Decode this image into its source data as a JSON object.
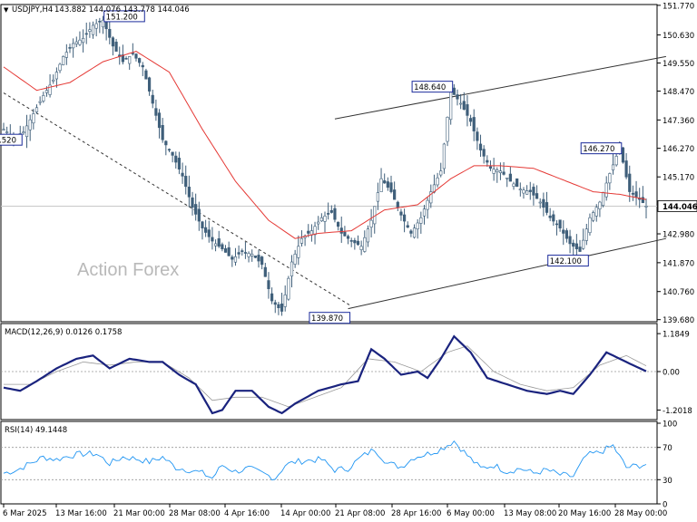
{
  "chart_data": {
    "type": "candlestick",
    "instrument": "USDJPY,H4",
    "ohlc_header": "143.882 144.076 143.778 144.046",
    "current_price": "144.046",
    "watermark": "Action Forex",
    "x_tick_labels": [
      "6 Mar 2025",
      "13 Mar 16:00",
      "21 Mar 00:00",
      "28 Mar 08:00",
      "4 Apr 16:00",
      "14 Apr 00:00",
      "21 Apr 08:00",
      "28 Apr 16:00",
      "6 May 00:00",
      "13 May 08:00",
      "20 May 16:00",
      "28 May 00:00"
    ],
    "price_panel": {
      "y_ticks": [
        "151.770",
        "150.630",
        "149.550",
        "148.470",
        "147.360",
        "146.270",
        "145.170",
        "144.046",
        "142.980",
        "141.870",
        "140.760",
        "139.680"
      ],
      "ylim": [
        139.6,
        151.8
      ],
      "annotations": [
        "151.200",
        "148.640",
        "146.270",
        "142.100",
        "139.870",
        ".520"
      ],
      "close_path": [
        [
          0,
          147.0
        ],
        [
          3,
          146.7
        ],
        [
          6,
          146.9
        ],
        [
          9,
          147.6
        ],
        [
          12,
          148.3
        ],
        [
          15,
          148.9
        ],
        [
          18,
          149.8
        ],
        [
          21,
          150.3
        ],
        [
          24,
          150.5
        ],
        [
          27,
          151.0
        ],
        [
          30,
          151.2
        ],
        [
          33,
          150.2
        ],
        [
          36,
          149.6
        ],
        [
          39,
          149.9
        ],
        [
          42,
          149.4
        ],
        [
          45,
          148.0
        ],
        [
          48,
          146.6
        ],
        [
          51,
          146.0
        ],
        [
          54,
          145.2
        ],
        [
          57,
          144.0
        ],
        [
          60,
          143.2
        ],
        [
          63,
          142.7
        ],
        [
          66,
          142.4
        ],
        [
          69,
          142.0
        ],
        [
          72,
          142.3
        ],
        [
          75,
          142.2
        ],
        [
          78,
          141.8
        ],
        [
          81,
          140.4
        ],
        [
          84,
          140.0
        ],
        [
          87,
          141.9
        ],
        [
          90,
          142.8
        ],
        [
          93,
          143.1
        ],
        [
          96,
          143.6
        ],
        [
          99,
          143.8
        ],
        [
          102,
          143.0
        ],
        [
          105,
          142.7
        ],
        [
          108,
          142.5
        ],
        [
          111,
          143.5
        ],
        [
          114,
          145.1
        ],
        [
          117,
          144.6
        ],
        [
          120,
          143.7
        ],
        [
          123,
          143.0
        ],
        [
          126,
          143.6
        ],
        [
          129,
          144.6
        ],
        [
          132,
          145.4
        ],
        [
          135,
          148.5
        ],
        [
          138,
          148.0
        ],
        [
          141,
          147.3
        ],
        [
          144,
          146.2
        ],
        [
          147,
          145.5
        ],
        [
          150,
          145.4
        ],
        [
          153,
          145.0
        ],
        [
          156,
          144.7
        ],
        [
          159,
          144.6
        ],
        [
          162,
          144.2
        ],
        [
          165,
          143.6
        ],
        [
          168,
          143.2
        ],
        [
          171,
          142.6
        ],
        [
          174,
          142.3
        ],
        [
          177,
          143.6
        ],
        [
          180,
          144.2
        ],
        [
          183,
          145.3
        ],
        [
          186,
          146.3
        ],
        [
          189,
          144.6
        ],
        [
          192,
          144.3
        ],
        [
          194,
          144.05
        ]
      ],
      "ma_path": [
        [
          0,
          149.4
        ],
        [
          10,
          148.5
        ],
        [
          20,
          148.8
        ],
        [
          30,
          149.6
        ],
        [
          40,
          150.0
        ],
        [
          50,
          149.2
        ],
        [
          60,
          147.0
        ],
        [
          70,
          145.0
        ],
        [
          80,
          143.5
        ],
        [
          88,
          142.8
        ],
        [
          95,
          143.0
        ],
        [
          105,
          143.1
        ],
        [
          115,
          143.9
        ],
        [
          125,
          144.1
        ],
        [
          135,
          145.1
        ],
        [
          142,
          145.6
        ],
        [
          150,
          145.6
        ],
        [
          160,
          145.5
        ],
        [
          170,
          145.0
        ],
        [
          178,
          144.6
        ],
        [
          186,
          144.5
        ],
        [
          194,
          144.3
        ]
      ],
      "channel_lines": [
        {
          "x": [
            104,
            200
          ],
          "y": [
            140.1,
            142.8
          ]
        },
        {
          "x": [
            100,
            200
          ],
          "y": [
            147.4,
            149.8
          ]
        },
        {
          "x": [
            0,
            105
          ],
          "y": [
            148.4,
            140.2
          ]
        }
      ]
    },
    "macd_panel": {
      "title": "MACD(12,26,9) 0.0126 0.1758",
      "y_ticks": [
        "1.1849",
        "0.00",
        "-1.2018"
      ],
      "ylim": [
        -1.5,
        1.5
      ],
      "macd": [
        [
          0,
          -0.5
        ],
        [
          5,
          -0.6
        ],
        [
          10,
          -0.3
        ],
        [
          16,
          0.1
        ],
        [
          22,
          0.4
        ],
        [
          27,
          0.5
        ],
        [
          32,
          0.1
        ],
        [
          38,
          0.4
        ],
        [
          44,
          0.3
        ],
        [
          48,
          0.3
        ],
        [
          53,
          -0.1
        ],
        [
          58,
          -0.4
        ],
        [
          63,
          -1.3
        ],
        [
          66,
          -1.2
        ],
        [
          70,
          -0.6
        ],
        [
          75,
          -0.6
        ],
        [
          80,
          -1.1
        ],
        [
          84,
          -1.3
        ],
        [
          88,
          -1.0
        ],
        [
          95,
          -0.6
        ],
        [
          102,
          -0.4
        ],
        [
          107,
          -0.3
        ],
        [
          111,
          0.7
        ],
        [
          115,
          0.4
        ],
        [
          120,
          -0.1
        ],
        [
          125,
          0.0
        ],
        [
          128,
          -0.2
        ],
        [
          132,
          0.4
        ],
        [
          136,
          1.1
        ],
        [
          141,
          0.6
        ],
        [
          146,
          -0.2
        ],
        [
          152,
          -0.4
        ],
        [
          158,
          -0.6
        ],
        [
          164,
          -0.7
        ],
        [
          168,
          -0.6
        ],
        [
          172,
          -0.7
        ],
        [
          177,
          -0.1
        ],
        [
          182,
          0.6
        ],
        [
          186,
          0.4
        ],
        [
          190,
          0.2
        ],
        [
          194,
          0.01
        ]
      ],
      "signal": [
        [
          0,
          -0.4
        ],
        [
          8,
          -0.4
        ],
        [
          16,
          0.0
        ],
        [
          24,
          0.3
        ],
        [
          32,
          0.2
        ],
        [
          40,
          0.3
        ],
        [
          48,
          0.3
        ],
        [
          56,
          -0.2
        ],
        [
          63,
          -0.9
        ],
        [
          70,
          -0.8
        ],
        [
          78,
          -0.8
        ],
        [
          86,
          -1.1
        ],
        [
          94,
          -0.8
        ],
        [
          102,
          -0.5
        ],
        [
          110,
          0.4
        ],
        [
          118,
          0.3
        ],
        [
          126,
          0.0
        ],
        [
          134,
          0.6
        ],
        [
          140,
          0.8
        ],
        [
          148,
          0.0
        ],
        [
          156,
          -0.4
        ],
        [
          164,
          -0.6
        ],
        [
          172,
          -0.5
        ],
        [
          180,
          0.2
        ],
        [
          188,
          0.5
        ],
        [
          194,
          0.18
        ]
      ]
    },
    "rsi_panel": {
      "title": "RSI(14) 49.1448",
      "y_ticks": [
        "100",
        "70",
        "30",
        "0"
      ],
      "ylim": [
        0,
        100
      ],
      "levels": [
        70,
        30
      ],
      "rsi": [
        [
          0,
          38
        ],
        [
          4,
          42
        ],
        [
          8,
          50
        ],
        [
          12,
          58
        ],
        [
          16,
          55
        ],
        [
          20,
          60
        ],
        [
          24,
          62
        ],
        [
          28,
          62
        ],
        [
          32,
          50
        ],
        [
          36,
          58
        ],
        [
          40,
          56
        ],
        [
          44,
          52
        ],
        [
          48,
          58
        ],
        [
          52,
          45
        ],
        [
          56,
          42
        ],
        [
          60,
          38
        ],
        [
          63,
          32
        ],
        [
          66,
          48
        ],
        [
          70,
          40
        ],
        [
          74,
          44
        ],
        [
          78,
          38
        ],
        [
          82,
          32
        ],
        [
          85,
          48
        ],
        [
          88,
          52
        ],
        [
          92,
          54
        ],
        [
          96,
          55
        ],
        [
          100,
          42
        ],
        [
          104,
          44
        ],
        [
          108,
          58
        ],
        [
          112,
          68
        ],
        [
          116,
          50
        ],
        [
          120,
          46
        ],
        [
          124,
          58
        ],
        [
          128,
          62
        ],
        [
          132,
          68
        ],
        [
          136,
          78
        ],
        [
          140,
          60
        ],
        [
          144,
          44
        ],
        [
          148,
          48
        ],
        [
          152,
          40
        ],
        [
          156,
          44
        ],
        [
          160,
          38
        ],
        [
          164,
          42
        ],
        [
          168,
          36
        ],
        [
          172,
          34
        ],
        [
          176,
          60
        ],
        [
          180,
          64
        ],
        [
          184,
          72
        ],
        [
          188,
          45
        ],
        [
          191,
          47
        ],
        [
          194,
          49.1
        ]
      ]
    }
  }
}
